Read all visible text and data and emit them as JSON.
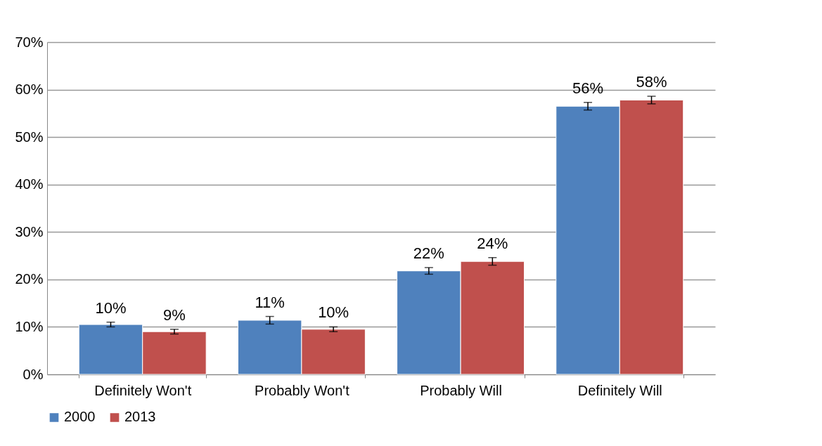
{
  "chart_data": {
    "type": "bar",
    "categories": [
      "Definitely Won't",
      "Probably Won't",
      "Probably Will",
      "Definitely Will"
    ],
    "series": [
      {
        "name": "2000",
        "color": "#4f81bd",
        "values": [
          10.5,
          11.4,
          21.8,
          56.5
        ],
        "errors": [
          0.5,
          0.8,
          0.7,
          0.8
        ],
        "value_labels": [
          "10%",
          "11%",
          "22%",
          "56%"
        ]
      },
      {
        "name": "2013",
        "color": "#c0504d",
        "values": [
          9.0,
          9.5,
          23.8,
          57.8
        ],
        "errors": [
          0.5,
          0.5,
          0.8,
          0.8
        ],
        "value_labels": [
          "9%",
          "10%",
          "24%",
          "58%"
        ]
      }
    ],
    "ylim": [
      0,
      70
    ],
    "yticks": [
      {
        "value": 0,
        "label": "0%"
      },
      {
        "value": 10,
        "label": "10%"
      },
      {
        "value": 20,
        "label": "20%"
      },
      {
        "value": 30,
        "label": "30%"
      },
      {
        "value": 40,
        "label": "40%"
      },
      {
        "value": 50,
        "label": "50%"
      },
      {
        "value": 60,
        "label": "60%"
      },
      {
        "value": 70,
        "label": "70%"
      }
    ],
    "grid": "y",
    "legend": "bottom"
  }
}
